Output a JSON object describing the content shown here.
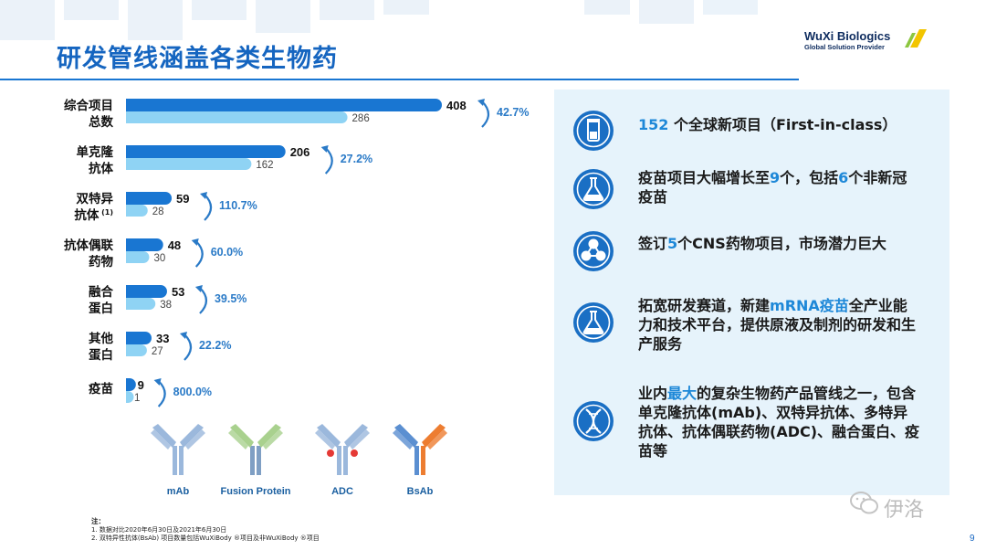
{
  "slide": {
    "title": "研发管线涵盖各类生物药",
    "page_number": "9"
  },
  "logo": {
    "name": "WuXi Biologics",
    "tagline": "Global Solution Provider"
  },
  "chart_data": {
    "type": "bar",
    "orientation": "horizontal",
    "categories": [
      {
        "lines": [
          "综合项目",
          "总数"
        ],
        "sup": ""
      },
      {
        "lines": [
          "单克隆",
          "抗体"
        ],
        "sup": ""
      },
      {
        "lines": [
          "双特异",
          "抗体"
        ],
        "sup": "(1)"
      },
      {
        "lines": [
          "抗体偶联",
          "药物"
        ],
        "sup": ""
      },
      {
        "lines": [
          "融合",
          "蛋白"
        ],
        "sup": ""
      },
      {
        "lines": [
          "其他",
          "蛋白"
        ],
        "sup": ""
      },
      {
        "lines": [
          "疫苗"
        ],
        "sup": ""
      }
    ],
    "series": [
      {
        "values": [
          408,
          206,
          59,
          48,
          53,
          33,
          9
        ],
        "color": "#1976d2"
      },
      {
        "values": [
          286,
          162,
          28,
          30,
          38,
          27,
          1
        ],
        "color": "#8fd3f4"
      }
    ],
    "growth": [
      "42.7%",
      "27.2%",
      "110.7%",
      "60.0%",
      "39.5%",
      "22.2%",
      "800.0%"
    ],
    "growth_color": "#2a7ac7",
    "xlim": [
      0,
      408
    ]
  },
  "molecules": [
    {
      "label": "mAb",
      "type": "mab",
      "colors": [
        "#9bb8dc",
        "#9bb8dc"
      ]
    },
    {
      "label": "Fusion Protein",
      "type": "fusion",
      "colors": [
        "#a9d18e",
        "#7f9fc4"
      ]
    },
    {
      "label": "ADC",
      "type": "adc",
      "colors": [
        "#9bb8dc",
        "#e53935"
      ]
    },
    {
      "label": "BsAb",
      "type": "bsab",
      "colors": [
        "#5b8fd1",
        "#ed7d31"
      ]
    }
  ],
  "footnote": {
    "heading": "注：",
    "lines": [
      "1. 数据对比2020年6月30日及2021年6月30日",
      "2. 双特异性抗体(BsAb) 项目数量包括WuXiBody ®项目及非WuXiBody ®项目"
    ]
  },
  "panel": {
    "items": [
      {
        "icon": "vial-icon",
        "segments": [
          {
            "t": "152",
            "hl": true
          },
          {
            "t": " 个全球新项目（First-in-class）",
            "hl": false
          }
        ]
      },
      {
        "icon": "flask-icon",
        "segments": [
          {
            "t": "疫苗项目大幅增长至",
            "hl": false
          },
          {
            "t": "9",
            "hl": true
          },
          {
            "t": "个，包括",
            "hl": false
          },
          {
            "t": "6",
            "hl": true
          },
          {
            "t": "个非新冠疫苗",
            "hl": false
          }
        ]
      },
      {
        "icon": "molecule-icon",
        "segments": [
          {
            "t": "签订",
            "hl": false
          },
          {
            "t": "5",
            "hl": true
          },
          {
            "t": "个CNS药物项目，市场潜力巨大",
            "hl": false
          }
        ]
      },
      {
        "icon": "flask-icon",
        "segments": [
          {
            "t": "拓宽研发赛道，新建",
            "hl": false
          },
          {
            "t": "mRNA疫苗",
            "hl": true
          },
          {
            "t": "全产业能力和技术平台，提供原液及制剂的研发和生产服务",
            "hl": false
          }
        ]
      },
      {
        "icon": "dna-icon",
        "segments": [
          {
            "t": "业内",
            "hl": false
          },
          {
            "t": "最大",
            "hl": true
          },
          {
            "t": "的复杂生物药产品管线之一，包含单克隆抗体(mAb)、双特异抗体、多特异抗体、抗体偶联药物(ADC)、融合蛋白、疫苗等",
            "hl": false
          }
        ]
      }
    ]
  },
  "watermark": {
    "text": "伊洛"
  },
  "colors": {
    "brand_blue": "#1565c0",
    "highlight": "#1e88d8",
    "panel_bg": "#e6f3fb"
  }
}
